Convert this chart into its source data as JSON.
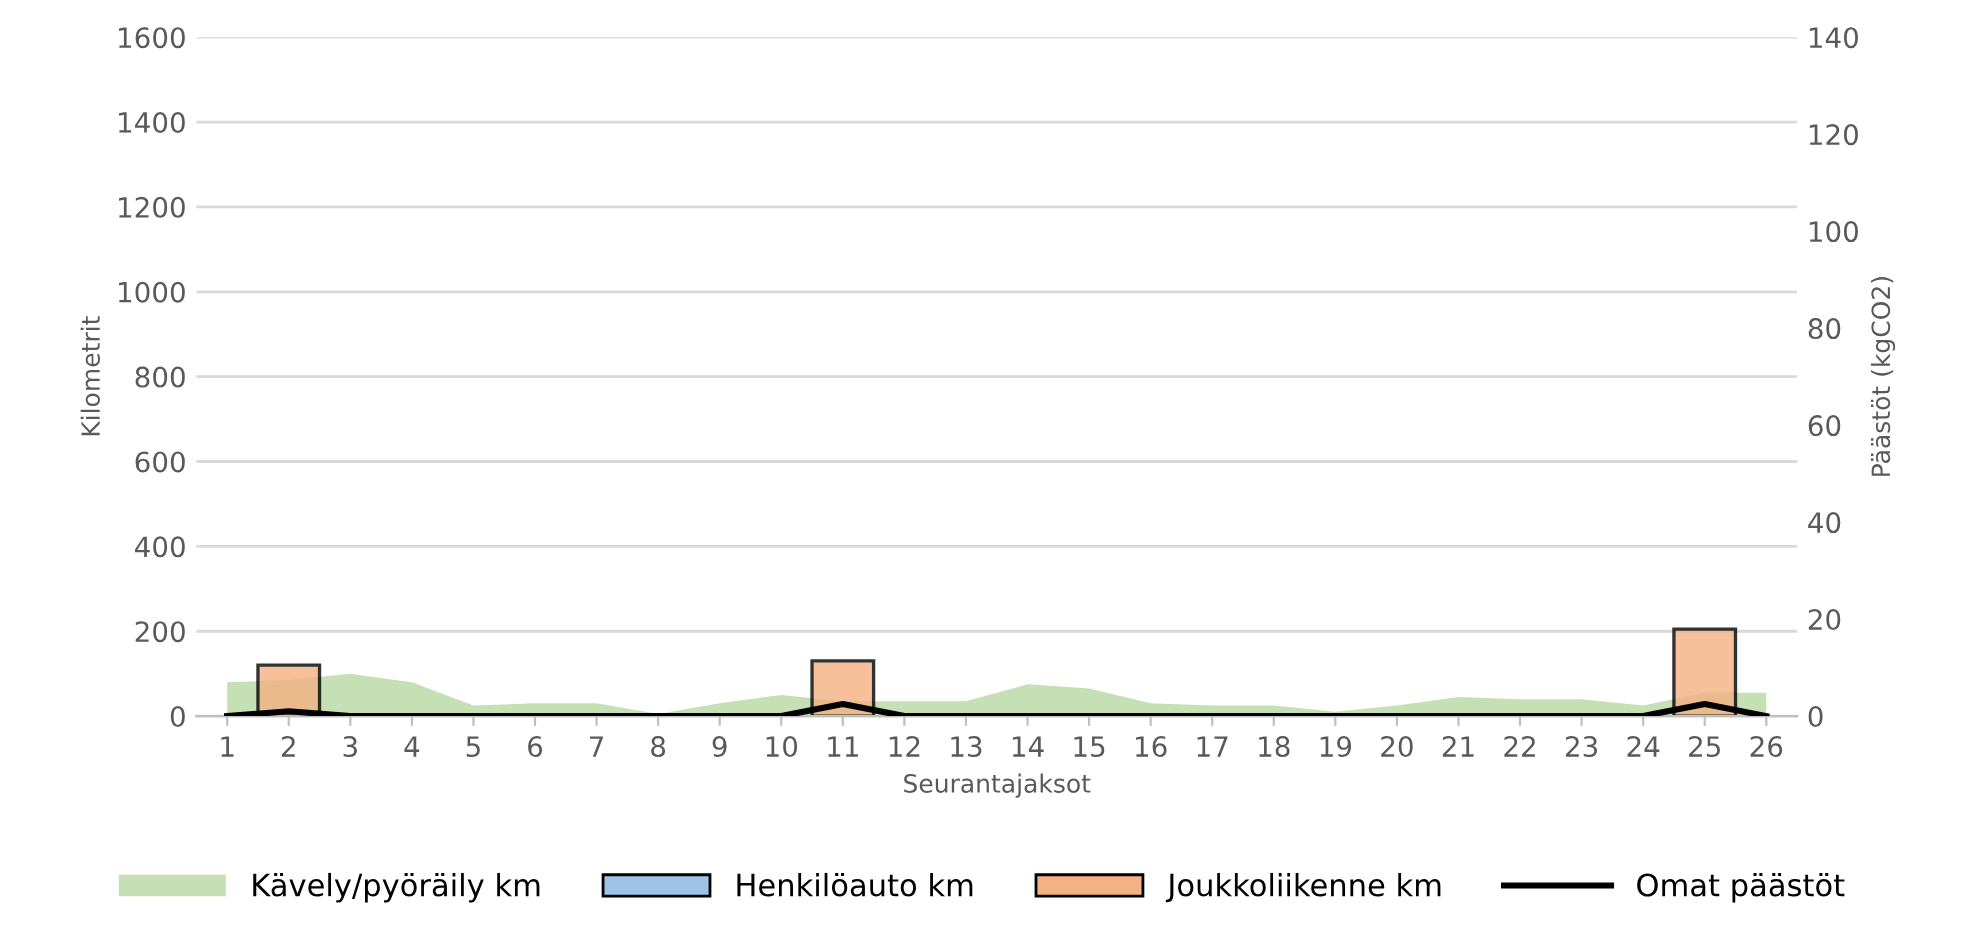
{
  "chart_data": {
    "type": "bar",
    "xlabel": "Seurantajaksot",
    "ylabel": "Kilometrit",
    "y2label": "Päästöt (kgCO2)",
    "categories": [
      "1",
      "2",
      "3",
      "4",
      "5",
      "6",
      "7",
      "8",
      "9",
      "10",
      "11",
      "12",
      "13",
      "14",
      "15",
      "16",
      "17",
      "18",
      "19",
      "20",
      "21",
      "22",
      "23",
      "24",
      "25",
      "26"
    ],
    "series": [
      {
        "name": "Kävely/pyöräily km",
        "type": "area",
        "color": "#c5e0b4",
        "values": [
          80,
          85,
          100,
          80,
          25,
          30,
          30,
          5,
          30,
          50,
          35,
          35,
          35,
          75,
          65,
          30,
          25,
          25,
          10,
          25,
          45,
          40,
          40,
          25,
          55,
          55
        ]
      },
      {
        "name": "Henkilöauto km",
        "color": "#9dc3e6",
        "values": [
          null,
          null,
          null,
          null,
          null,
          null,
          null,
          null,
          null,
          null,
          null,
          null,
          null,
          null,
          null,
          null,
          null,
          null,
          null,
          null,
          null,
          null,
          null,
          null,
          null,
          null
        ]
      },
      {
        "name": "Joukkoliikenne km",
        "color": "#f4b183",
        "values": [
          null,
          120,
          null,
          null,
          null,
          null,
          null,
          null,
          null,
          null,
          130,
          null,
          null,
          null,
          null,
          null,
          null,
          null,
          null,
          null,
          null,
          null,
          null,
          null,
          205,
          null
        ]
      },
      {
        "name": "Omat päästöt",
        "type": "line",
        "axis": "y2",
        "color": "#000000",
        "values": [
          0,
          1,
          0,
          0,
          0,
          0,
          0,
          0,
          0,
          0,
          2.5,
          0,
          0,
          0,
          0,
          0,
          0,
          0,
          0,
          0,
          0,
          0,
          0,
          0,
          2.5,
          0
        ]
      }
    ],
    "ylim": [
      0,
      1600
    ],
    "yticks": [
      0,
      200,
      400,
      600,
      800,
      1000,
      1200,
      1400,
      1600
    ],
    "y2lim": [
      0,
      140
    ],
    "y2ticks": [
      0,
      20,
      40,
      60,
      80,
      100,
      120,
      140
    ],
    "grid": "y",
    "legend": "bottom",
    "marker": "none",
    "line_style": "solid"
  }
}
